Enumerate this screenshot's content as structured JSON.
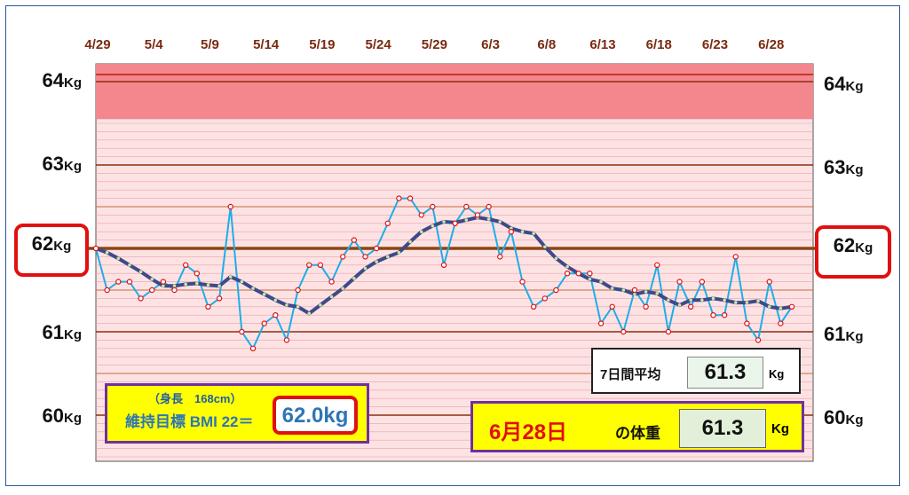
{
  "chart_data": {
    "type": "line",
    "x_tick_labels": [
      "4/29",
      "5/4",
      "5/9",
      "5/14",
      "5/19",
      "5/24",
      "5/29",
      "6/3",
      "6/8",
      "6/13",
      "6/18",
      "6/23",
      "6/28"
    ],
    "y_ticks": [
      {
        "value": 64,
        "num": "64",
        "unit": "Kg"
      },
      {
        "value": 63,
        "num": "63",
        "unit": "Kg"
      },
      {
        "value": 62,
        "num": "62",
        "unit": "Kg"
      },
      {
        "value": 61,
        "num": "61",
        "unit": "Kg"
      },
      {
        "value": 60,
        "num": "60",
        "unit": "Kg"
      }
    ],
    "ylim": [
      59.5,
      64.2
    ],
    "target_value": 62.0,
    "series": [
      {
        "role": "daily",
        "color": "#1eaee8",
        "values": [
          62.0,
          61.5,
          61.6,
          61.6,
          61.4,
          61.5,
          61.6,
          61.5,
          61.8,
          61.7,
          61.3,
          61.4,
          62.5,
          61.0,
          60.8,
          61.1,
          61.2,
          60.9,
          61.5,
          61.8,
          61.8,
          61.6,
          61.9,
          62.1,
          61.9,
          62.0,
          62.3,
          62.6,
          62.6,
          62.4,
          62.5,
          61.8,
          62.3,
          62.5,
          62.4,
          62.5,
          61.9,
          62.2,
          61.6,
          61.3,
          61.4,
          61.5,
          61.7,
          61.7,
          61.7,
          61.1,
          61.3,
          61.0,
          61.5,
          61.3,
          61.8,
          61.0,
          61.6,
          61.3,
          61.6,
          61.2,
          61.2,
          61.9,
          61.1,
          60.9,
          61.6,
          61.1,
          61.3
        ]
      },
      {
        "role": "7-day average",
        "color": "#3d4a8a",
        "values": [
          62.0,
          61.95,
          61.88,
          61.8,
          61.72,
          61.63,
          61.55,
          61.55,
          61.57,
          61.58,
          61.56,
          61.55,
          61.66,
          61.6,
          61.52,
          61.45,
          61.38,
          61.32,
          61.3,
          61.22,
          61.32,
          61.42,
          61.52,
          61.64,
          61.76,
          61.84,
          61.9,
          61.95,
          62.08,
          62.2,
          62.27,
          62.32,
          62.31,
          62.34,
          62.37,
          62.35,
          62.32,
          62.24,
          62.2,
          62.18,
          62.02,
          61.88,
          61.78,
          61.7,
          61.63,
          61.6,
          61.52,
          61.5,
          61.45,
          61.48,
          61.46,
          61.38,
          61.32,
          61.38,
          61.38,
          61.4,
          61.38,
          61.35,
          61.35,
          61.37,
          61.3,
          61.28,
          61.3
        ]
      }
    ],
    "grid": true
  },
  "avg_box": {
    "label": "7日間平均",
    "value": "61.3",
    "unit": "Kg"
  },
  "bmi_box": {
    "height": "（身長　168cm）",
    "label": "維持目標 BMI 22＝",
    "value": "62.0kg"
  },
  "date_box": {
    "date": "6月28日",
    "of_label": "の体重",
    "value": "61.3",
    "unit": "Kg"
  },
  "colors": {
    "top_band": "#f4878e",
    "lower_band": "#fde2e4",
    "avg_line": "#3d4a8a",
    "daily_line": "#1eaee8",
    "major_grid": "#8b2e0e",
    "target_line": "#8b4513",
    "label_red": "#e01010",
    "box_yellow": "#ffff00",
    "box_border": "#7030a0"
  }
}
